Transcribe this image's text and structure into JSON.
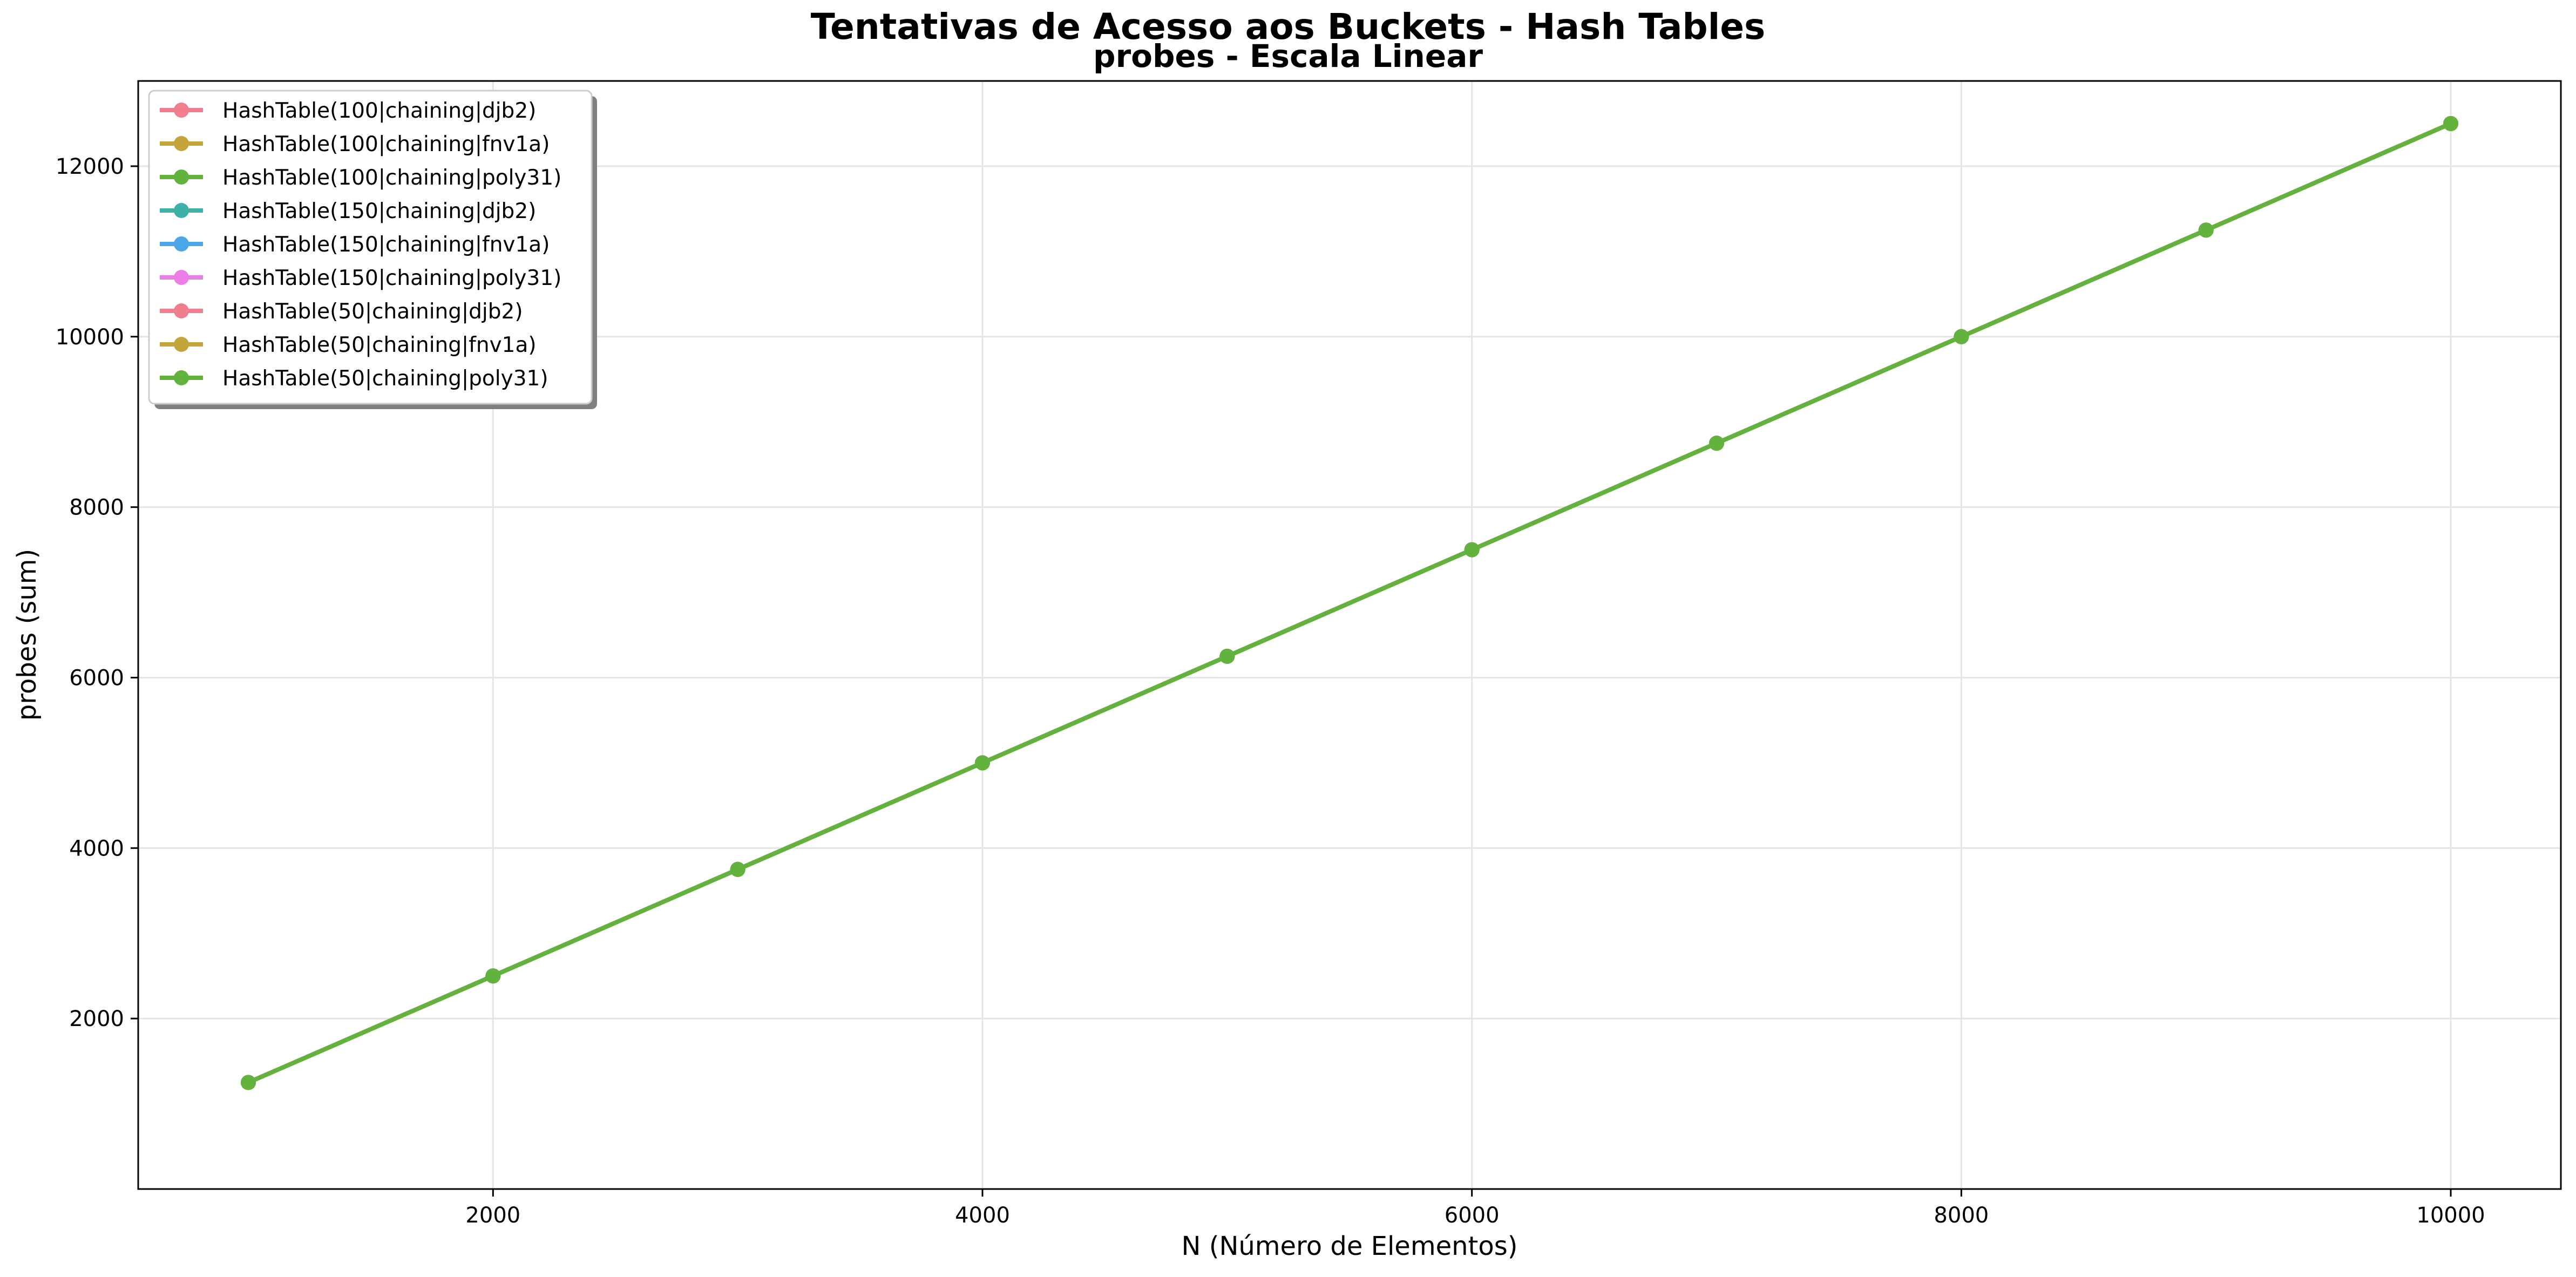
{
  "chart_data": {
    "type": "line",
    "title": "Tentativas de Acesso aos Buckets - Hash Tables",
    "subtitle": "probes - Escala Linear",
    "xlabel": "N (Número de Elementos)",
    "ylabel": "probes (sum)",
    "xlim": [
      550,
      10450
    ],
    "ylim": [
      0,
      13000
    ],
    "xticks": [
      2000,
      4000,
      6000,
      8000,
      10000
    ],
    "yticks": [
      2000,
      4000,
      6000,
      8000,
      10000,
      12000
    ],
    "grid": true,
    "legend_position": "top-left",
    "x": [
      1000,
      2000,
      3000,
      4000,
      5000,
      6000,
      7000,
      8000,
      9000,
      10000
    ],
    "series": [
      {
        "name": "HashTable(100|chaining|djb2)",
        "color": "#f07e8e",
        "values": [
          1250,
          2500,
          3750,
          5000,
          6250,
          7500,
          8750,
          10000,
          11250,
          12500
        ]
      },
      {
        "name": "HashTable(100|chaining|fnv1a)",
        "color": "#c3a53c",
        "values": [
          1250,
          2500,
          3750,
          5000,
          6250,
          7500,
          8750,
          10000,
          11250,
          12500
        ]
      },
      {
        "name": "HashTable(100|chaining|poly31)",
        "color": "#62b33d",
        "values": [
          1250,
          2500,
          3750,
          5000,
          6250,
          7500,
          8750,
          10000,
          11250,
          12500
        ]
      },
      {
        "name": "HashTable(150|chaining|djb2)",
        "color": "#3fb0a8",
        "values": [
          1250,
          2500,
          3750,
          5000,
          6250,
          7500,
          8750,
          10000,
          11250,
          12500
        ]
      },
      {
        "name": "HashTable(150|chaining|fnv1a)",
        "color": "#4aa6e6",
        "values": [
          1250,
          2500,
          3750,
          5000,
          6250,
          7500,
          8750,
          10000,
          11250,
          12500
        ]
      },
      {
        "name": "HashTable(150|chaining|poly31)",
        "color": "#ea7ee6",
        "values": [
          1250,
          2500,
          3750,
          5000,
          6250,
          7500,
          8750,
          10000,
          11250,
          12500
        ]
      },
      {
        "name": "HashTable(50|chaining|djb2)",
        "color": "#f07e8e",
        "values": [
          1250,
          2500,
          3750,
          5000,
          6250,
          7500,
          8750,
          10000,
          11250,
          12500
        ]
      },
      {
        "name": "HashTable(50|chaining|fnv1a)",
        "color": "#c3a53c",
        "values": [
          1250,
          2500,
          3750,
          5000,
          6250,
          7500,
          8750,
          10000,
          11250,
          12500
        ]
      },
      {
        "name": "HashTable(50|chaining|poly31)",
        "color": "#62b33d",
        "values": [
          1250,
          2500,
          3750,
          5000,
          6250,
          7500,
          8750,
          10000,
          11250,
          12500
        ]
      }
    ]
  }
}
